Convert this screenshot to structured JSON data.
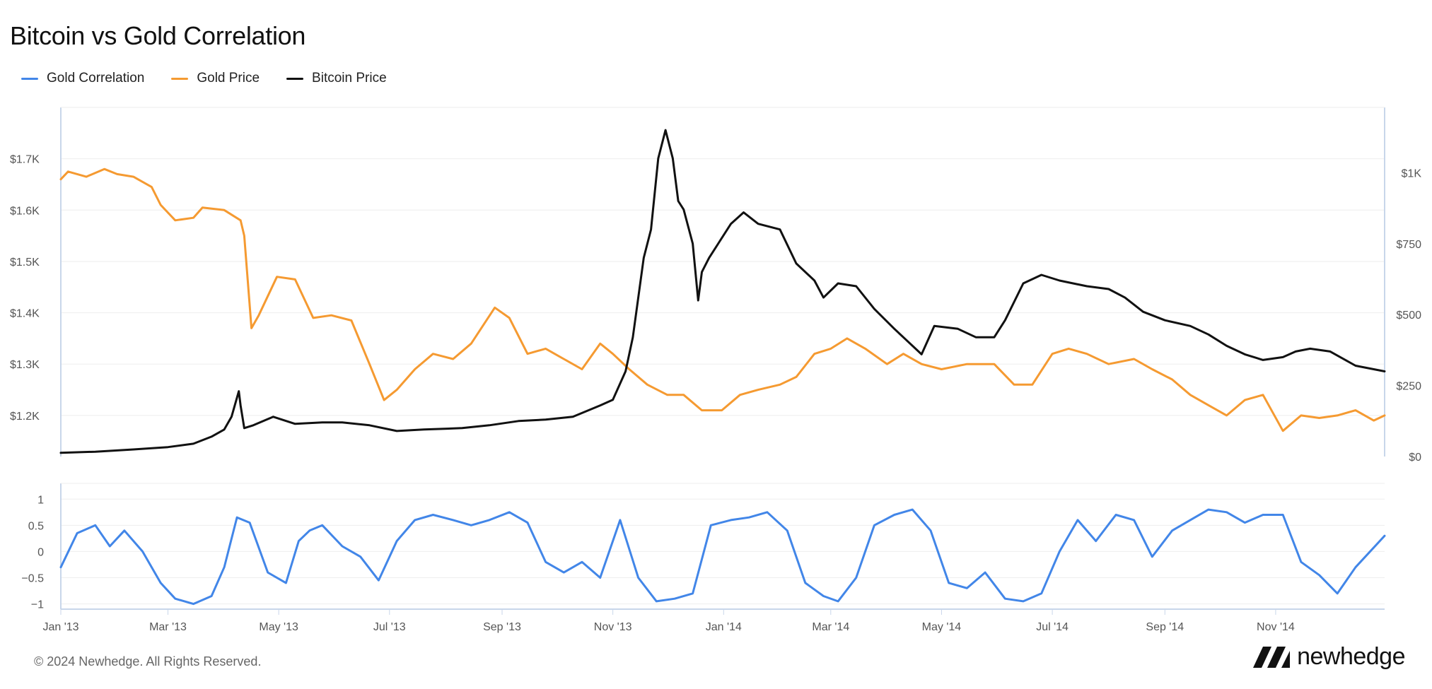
{
  "page": {
    "copyright": "© 2024 Newhedge. All Rights Reserved.",
    "brand": "newhedge",
    "brand_icon": "newhedge-logo-icon"
  },
  "colors": {
    "correlation": "#4286e8",
    "gold": "#f59a31",
    "bitcoin": "#111111",
    "grid": "#eeeeee",
    "axis": "#c8d6ea"
  },
  "chart_data": {
    "type": "line",
    "title": "Bitcoin vs Gold Correlation",
    "legend": [
      {
        "name": "Gold Correlation",
        "color": "#4286e8"
      },
      {
        "name": "Gold Price",
        "color": "#f59a31"
      },
      {
        "name": "Bitcoin Price",
        "color": "#111111"
      }
    ],
    "legend_position": "top-left",
    "grid": true,
    "x_range": [
      "2013-01-01",
      "2014-12-31"
    ],
    "x_ticks": [
      "Jan '13",
      "Mar '13",
      "May '13",
      "Jul '13",
      "Sep '13",
      "Nov '13",
      "Jan '14",
      "Mar '14",
      "May '14",
      "Jul '14",
      "Sep '14",
      "Nov '14"
    ],
    "x_tick_dates": [
      "2013-01-01",
      "2013-03-01",
      "2013-05-01",
      "2013-07-01",
      "2013-09-01",
      "2013-11-01",
      "2014-01-01",
      "2014-03-01",
      "2014-05-01",
      "2014-07-01",
      "2014-09-01",
      "2014-11-01"
    ],
    "gold_axis": {
      "side": "left",
      "ticks": [
        1200,
        1300,
        1400,
        1500,
        1600,
        1700
      ],
      "tick_labels": [
        "$1.2K",
        "$1.3K",
        "$1.4K",
        "$1.5K",
        "$1.6K",
        "$1.7K"
      ],
      "range": [
        1120,
        1800
      ]
    },
    "bitcoin_axis": {
      "side": "right",
      "ticks": [
        0,
        250,
        500,
        750,
        1000
      ],
      "tick_labels": [
        "$0",
        "$250",
        "$500",
        "$750",
        "$1K"
      ],
      "range": [
        0,
        1230
      ]
    },
    "correlation_axis": {
      "ticks": [
        -1,
        -0.5,
        0,
        0.5,
        1
      ],
      "tick_labels": [
        "−1",
        "−0.5",
        "0",
        "0.5",
        "1"
      ],
      "range": [
        -1.1,
        1.3
      ]
    },
    "series": [
      {
        "name": "Gold Price",
        "axis": "gold",
        "x": [
          "2013-01-01",
          "2013-01-05",
          "2013-01-15",
          "2013-01-25",
          "2013-02-01",
          "2013-02-10",
          "2013-02-20",
          "2013-02-25",
          "2013-03-05",
          "2013-03-15",
          "2013-03-20",
          "2013-04-01",
          "2013-04-10",
          "2013-04-12",
          "2013-04-16",
          "2013-04-20",
          "2013-04-30",
          "2013-05-10",
          "2013-05-20",
          "2013-05-30",
          "2013-06-10",
          "2013-06-20",
          "2013-06-28",
          "2013-07-05",
          "2013-07-15",
          "2013-07-25",
          "2013-08-05",
          "2013-08-15",
          "2013-08-28",
          "2013-09-05",
          "2013-09-15",
          "2013-09-25",
          "2013-10-05",
          "2013-10-15",
          "2013-10-25",
          "2013-11-01",
          "2013-11-10",
          "2013-11-20",
          "2013-12-01",
          "2013-12-10",
          "2013-12-20",
          "2013-12-31",
          "2014-01-10",
          "2014-01-20",
          "2014-02-01",
          "2014-02-10",
          "2014-02-20",
          "2014-03-01",
          "2014-03-10",
          "2014-03-20",
          "2014-04-01",
          "2014-04-10",
          "2014-04-20",
          "2014-05-01",
          "2014-05-15",
          "2014-05-30",
          "2014-06-10",
          "2014-06-20",
          "2014-07-01",
          "2014-07-10",
          "2014-07-20",
          "2014-08-01",
          "2014-08-15",
          "2014-08-25",
          "2014-09-05",
          "2014-09-15",
          "2014-09-25",
          "2014-10-05",
          "2014-10-15",
          "2014-10-25",
          "2014-11-05",
          "2014-11-15",
          "2014-11-25",
          "2014-12-05",
          "2014-12-15",
          "2014-12-25",
          "2014-12-31"
        ],
        "values": [
          1660,
          1675,
          1665,
          1680,
          1670,
          1665,
          1645,
          1610,
          1580,
          1585,
          1605,
          1600,
          1580,
          1550,
          1370,
          1395,
          1470,
          1465,
          1390,
          1395,
          1385,
          1300,
          1230,
          1250,
          1290,
          1320,
          1310,
          1340,
          1410,
          1390,
          1320,
          1330,
          1310,
          1290,
          1340,
          1320,
          1290,
          1260,
          1240,
          1240,
          1210,
          1210,
          1240,
          1250,
          1260,
          1275,
          1320,
          1330,
          1350,
          1330,
          1300,
          1320,
          1300,
          1290,
          1300,
          1300,
          1260,
          1260,
          1320,
          1330,
          1320,
          1300,
          1310,
          1290,
          1270,
          1240,
          1220,
          1200,
          1230,
          1240,
          1170,
          1200,
          1195,
          1200,
          1210,
          1190,
          1200
        ]
      },
      {
        "name": "Bitcoin Price",
        "axis": "bitcoin",
        "x": [
          "2013-01-01",
          "2013-01-20",
          "2013-02-10",
          "2013-03-01",
          "2013-03-15",
          "2013-03-25",
          "2013-04-01",
          "2013-04-05",
          "2013-04-09",
          "2013-04-10",
          "2013-04-12",
          "2013-04-17",
          "2013-04-28",
          "2013-05-10",
          "2013-05-25",
          "2013-06-05",
          "2013-06-20",
          "2013-07-05",
          "2013-07-20",
          "2013-08-10",
          "2013-08-25",
          "2013-09-10",
          "2013-09-25",
          "2013-10-10",
          "2013-10-25",
          "2013-11-01",
          "2013-11-08",
          "2013-11-12",
          "2013-11-18",
          "2013-11-22",
          "2013-11-26",
          "2013-11-30",
          "2013-12-04",
          "2013-12-07",
          "2013-12-10",
          "2013-12-15",
          "2013-12-18",
          "2013-12-20",
          "2013-12-24",
          "2014-01-05",
          "2014-01-12",
          "2014-01-20",
          "2014-02-01",
          "2014-02-10",
          "2014-02-20",
          "2014-02-25",
          "2014-03-05",
          "2014-03-15",
          "2014-03-25",
          "2014-04-05",
          "2014-04-10",
          "2014-04-20",
          "2014-04-27",
          "2014-05-10",
          "2014-05-20",
          "2014-05-30",
          "2014-06-05",
          "2014-06-15",
          "2014-06-25",
          "2014-07-05",
          "2014-07-20",
          "2014-08-01",
          "2014-08-10",
          "2014-08-20",
          "2014-09-01",
          "2014-09-15",
          "2014-09-25",
          "2014-10-05",
          "2014-10-15",
          "2014-10-25",
          "2014-11-05",
          "2014-11-12",
          "2014-11-20",
          "2014-12-01",
          "2014-12-15",
          "2014-12-31"
        ],
        "values": [
          13,
          17,
          25,
          33,
          45,
          70,
          95,
          140,
          230,
          180,
          100,
          110,
          140,
          115,
          120,
          120,
          110,
          90,
          95,
          100,
          110,
          125,
          130,
          140,
          180,
          200,
          300,
          420,
          700,
          800,
          1050,
          1150,
          1050,
          900,
          870,
          750,
          550,
          650,
          700,
          820,
          860,
          820,
          800,
          680,
          620,
          560,
          610,
          600,
          520,
          450,
          420,
          360,
          460,
          450,
          420,
          420,
          480,
          610,
          640,
          620,
          600,
          590,
          560,
          510,
          480,
          460,
          430,
          390,
          360,
          340,
          350,
          370,
          380,
          370,
          320,
          300
        ]
      },
      {
        "name": "Gold Correlation",
        "axis": "correlation",
        "x": [
          "2013-01-01",
          "2013-01-10",
          "2013-01-20",
          "2013-01-28",
          "2013-02-05",
          "2013-02-15",
          "2013-02-25",
          "2013-03-05",
          "2013-03-15",
          "2013-03-25",
          "2013-04-01",
          "2013-04-08",
          "2013-04-15",
          "2013-04-25",
          "2013-05-05",
          "2013-05-12",
          "2013-05-18",
          "2013-05-25",
          "2013-06-05",
          "2013-06-15",
          "2013-06-25",
          "2013-07-05",
          "2013-07-15",
          "2013-07-25",
          "2013-08-05",
          "2013-08-15",
          "2013-08-25",
          "2013-09-05",
          "2013-09-15",
          "2013-09-25",
          "2013-10-05",
          "2013-10-15",
          "2013-10-25",
          "2013-11-05",
          "2013-11-15",
          "2013-11-25",
          "2013-12-05",
          "2013-12-15",
          "2013-12-25",
          "2014-01-05",
          "2014-01-15",
          "2014-01-25",
          "2014-02-05",
          "2014-02-15",
          "2014-02-25",
          "2014-03-05",
          "2014-03-15",
          "2014-03-25",
          "2014-04-05",
          "2014-04-15",
          "2014-04-25",
          "2014-05-05",
          "2014-05-15",
          "2014-05-25",
          "2014-06-05",
          "2014-06-15",
          "2014-06-25",
          "2014-07-05",
          "2014-07-15",
          "2014-07-25",
          "2014-08-05",
          "2014-08-15",
          "2014-08-25",
          "2014-09-05",
          "2014-09-15",
          "2014-09-25",
          "2014-10-05",
          "2014-10-15",
          "2014-10-25",
          "2014-11-05",
          "2014-11-15",
          "2014-11-25",
          "2014-12-05",
          "2014-12-15",
          "2014-12-31"
        ],
        "values": [
          -0.3,
          0.35,
          0.5,
          0.1,
          0.4,
          0.0,
          -0.6,
          -0.9,
          -1.0,
          -0.85,
          -0.3,
          0.65,
          0.55,
          -0.4,
          -0.6,
          0.2,
          0.4,
          0.5,
          0.1,
          -0.1,
          -0.55,
          0.2,
          0.6,
          0.7,
          0.6,
          0.5,
          0.6,
          0.75,
          0.55,
          -0.2,
          -0.4,
          -0.2,
          -0.5,
          0.6,
          -0.5,
          -0.95,
          -0.9,
          -0.8,
          0.5,
          0.6,
          0.65,
          0.75,
          0.4,
          -0.6,
          -0.85,
          -0.95,
          -0.5,
          0.5,
          0.7,
          0.8,
          0.4,
          -0.6,
          -0.7,
          -0.4,
          -0.9,
          -0.95,
          -0.8,
          0.0,
          0.6,
          0.2,
          0.7,
          0.6,
          -0.1,
          0.4,
          0.6,
          0.8,
          0.75,
          0.55,
          0.7,
          0.7,
          -0.2,
          -0.45,
          -0.8,
          -0.3,
          0.3
        ]
      }
    ]
  }
}
